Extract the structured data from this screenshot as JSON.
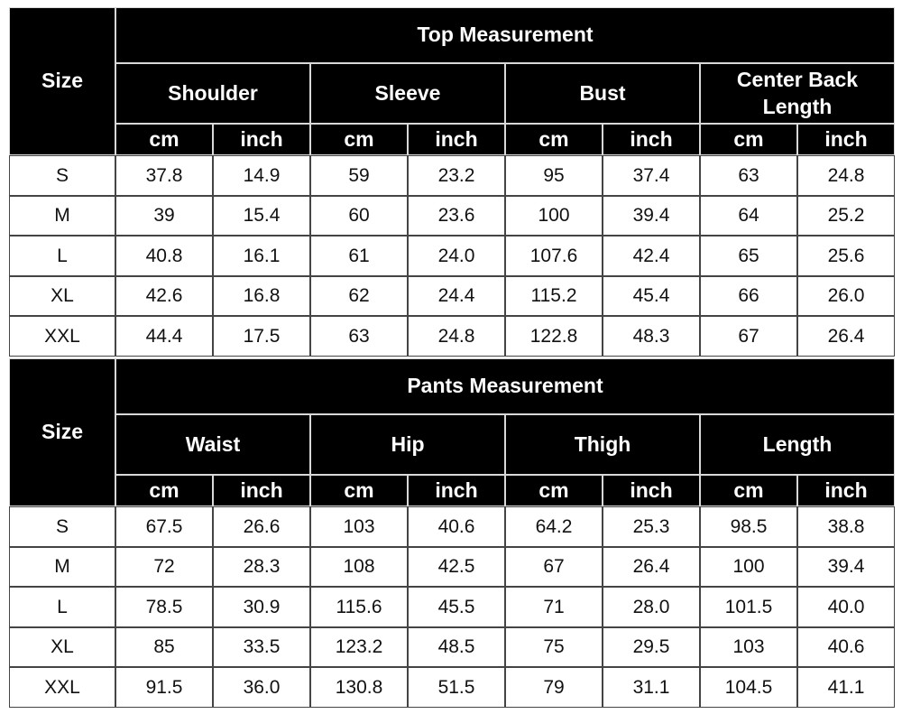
{
  "tables": [
    {
      "size_label": "Size",
      "title": "Top Measurement",
      "groups": [
        "Shoulder",
        "Sleeve",
        "Bust",
        "Center Back Length"
      ],
      "units": [
        "cm",
        "inch",
        "cm",
        "inch",
        "cm",
        "inch",
        "cm",
        "inch"
      ],
      "rows": [
        [
          "S",
          "37.8",
          "14.9",
          "59",
          "23.2",
          "95",
          "37.4",
          "63",
          "24.8"
        ],
        [
          "M",
          "39",
          "15.4",
          "60",
          "23.6",
          "100",
          "39.4",
          "64",
          "25.2"
        ],
        [
          "L",
          "40.8",
          "16.1",
          "61",
          "24.0",
          "107.6",
          "42.4",
          "65",
          "25.6"
        ],
        [
          "XL",
          "42.6",
          "16.8",
          "62",
          "24.4",
          "115.2",
          "45.4",
          "66",
          "26.0"
        ],
        [
          "XXL",
          "44.4",
          "17.5",
          "63",
          "24.8",
          "122.8",
          "48.3",
          "67",
          "26.4"
        ]
      ]
    },
    {
      "size_label": "Size",
      "title": "Pants Measurement",
      "groups": [
        "Waist",
        "Hip",
        "Thigh",
        "Length"
      ],
      "units": [
        "cm",
        "inch",
        "cm",
        "inch",
        "cm",
        "inch",
        "cm",
        "inch"
      ],
      "rows": [
        [
          "S",
          "67.5",
          "26.6",
          "103",
          "40.6",
          "64.2",
          "25.3",
          "98.5",
          "38.8"
        ],
        [
          "M",
          "72",
          "28.3",
          "108",
          "42.5",
          "67",
          "26.4",
          "100",
          "39.4"
        ],
        [
          "L",
          "78.5",
          "30.9",
          "115.6",
          "45.5",
          "71",
          "28.0",
          "101.5",
          "40.0"
        ],
        [
          "XL",
          "85",
          "33.5",
          "123.2",
          "48.5",
          "75",
          "29.5",
          "103",
          "40.6"
        ],
        [
          "XXL",
          "91.5",
          "36.0",
          "130.8",
          "51.5",
          "79",
          "31.1",
          "104.5",
          "41.1"
        ]
      ]
    }
  ]
}
